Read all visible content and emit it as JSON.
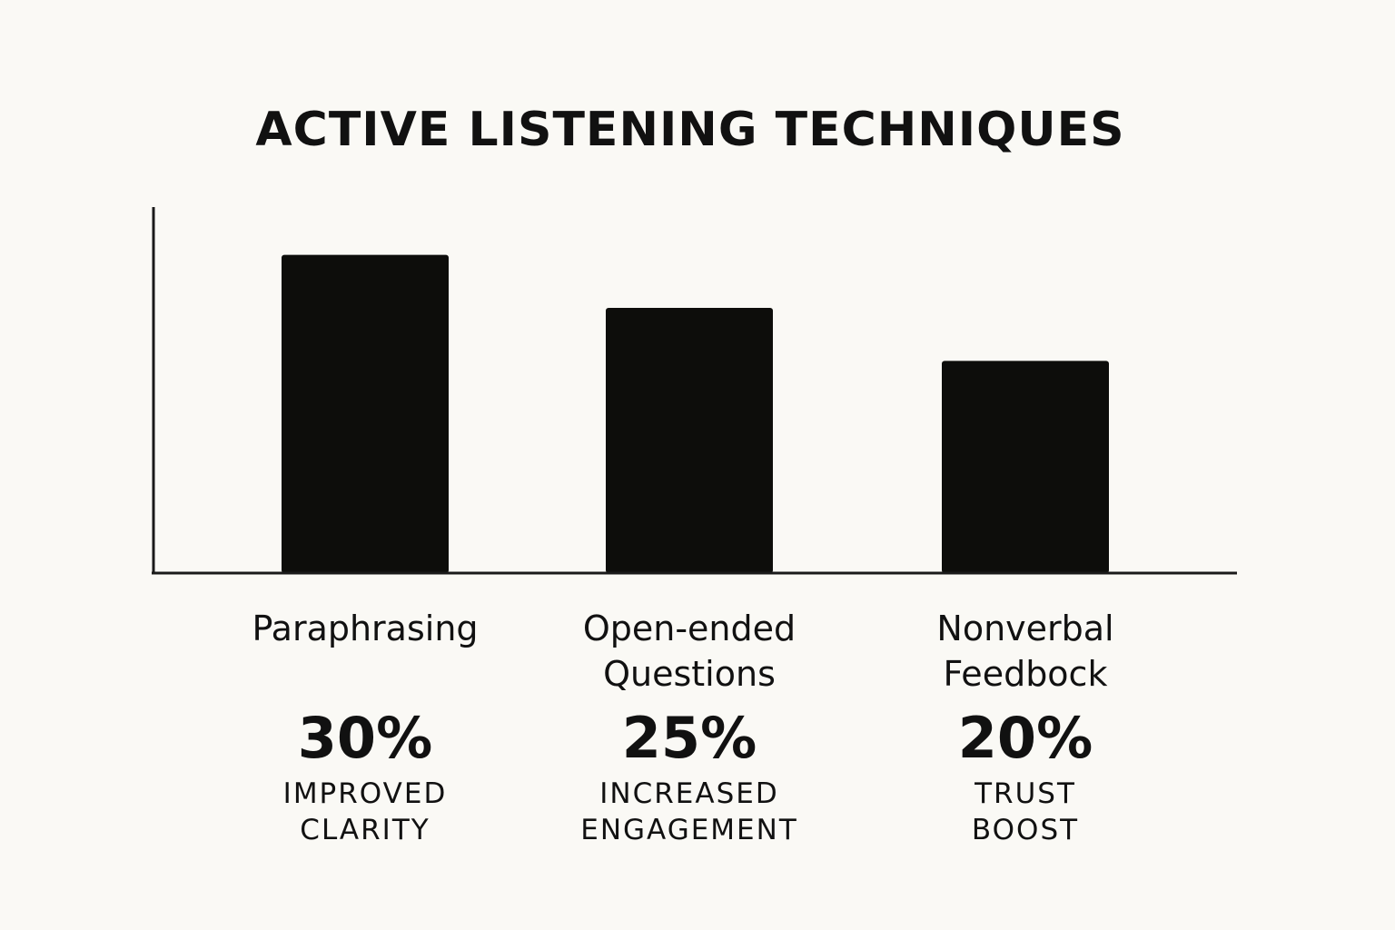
{
  "chart_data": {
    "type": "bar",
    "title": "ACTIVE LISTENING TECHNIQUES",
    "xlabel": "",
    "ylabel": "",
    "ylim": [
      0,
      34.5
    ],
    "grid": false,
    "legend": "none",
    "categories": [
      "Paraphrasing",
      "Open-ended Questions",
      "Nonverbal Feedbock"
    ],
    "category_lines": [
      [
        "Paraphrasing"
      ],
      [
        "Open-ended",
        "Questions"
      ],
      [
        "Nonverbal",
        "Feedbock"
      ]
    ],
    "values": [
      30,
      25,
      20
    ],
    "value_labels": [
      "30%",
      "25%",
      "20%"
    ],
    "descriptions": [
      [
        "IMPROVED",
        "CLARITY"
      ],
      [
        "INCREASED",
        "ENGAGEMENT"
      ],
      [
        "TRUST",
        "BOOST"
      ]
    ],
    "colors": {
      "bar": "#0d0d0b",
      "axis": "#1a1a1a",
      "text": "#111111",
      "background": "#faf9f5"
    }
  }
}
